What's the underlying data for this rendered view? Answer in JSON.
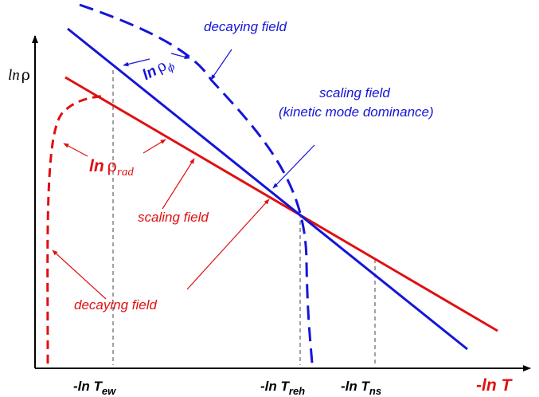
{
  "colors": {
    "red": "#e01010",
    "blue": "#1515d8",
    "black": "#000000",
    "grey": "#444444"
  },
  "axes": {
    "y_label_ln": "ln",
    "y_label_rho": "ρ",
    "x_label": "-ln T"
  },
  "ticks": [
    {
      "prefix": "-ln T",
      "sub": "ew"
    },
    {
      "prefix": "-ln T",
      "sub": "reh"
    },
    {
      "prefix": "-ln T",
      "sub": "ns"
    }
  ],
  "labels": {
    "decaying_field_blue": "decaying field",
    "scaling_field_blue_1": "scaling field",
    "scaling_field_blue_2": "(kinetic mode dominance)",
    "ln_rho_phi_ln": "ln",
    "ln_rho_phi_rho": "ρ",
    "ln_rho_phi_sub": "ϕ",
    "ln_rho_rad_ln": "ln",
    "ln_rho_rad_rho": "ρ",
    "ln_rho_rad_sub": "rad",
    "scaling_field_red": "scaling field",
    "decaying_field_red": "decaying field"
  }
}
